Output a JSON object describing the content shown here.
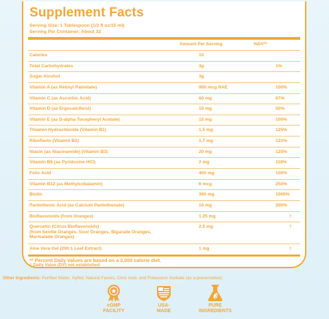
{
  "panel": {
    "title": "Supplement Facts",
    "serving_size": "Serving Size: 1 Tablespoon (1/2 fl oz/15 ml)",
    "servings_per_container": "Serving Per Container: About 32",
    "header_amount": "Amount Per Serving",
    "header_dv": "%DV**"
  },
  "rows": [
    {
      "name": "Calories",
      "amount": "10",
      "dv": ""
    },
    {
      "name": "Total Carbohydrates",
      "amount": "3g",
      "dv": "1%"
    },
    {
      "name": "Sugar Alcohol",
      "amount": "3g",
      "dv": ""
    },
    {
      "name": "Vitamin A (as Retinyl Palmitate)",
      "amount": "900 mcg RAE",
      "dv": "100%"
    },
    {
      "name": "Vitamin C (as Ascorbic Acid)",
      "amount": "60 mg",
      "dv": "67%"
    },
    {
      "name": "Vitamin D (as Ergocalciferol)",
      "amount": "10 mg",
      "dv": "50%"
    },
    {
      "name": "Vitamin E (as D-alpha Tocopheryl Acetate)",
      "amount": "15 mg",
      "dv": "100%"
    },
    {
      "name": "Thiamin Hydrochloride (Vitamin B1)",
      "amount": "1.5 mg",
      "dv": "125%"
    },
    {
      "name": "Riboflavin (Vitamin B2)",
      "amount": "1.7 mg",
      "dv": "131%"
    },
    {
      "name": "Niacin (as Niacinamide) (Vitamin B3)",
      "amount": "20 mg",
      "dv": "125%"
    },
    {
      "name": "Vitamin B6 (as Pyridoxine HCl)",
      "amount": "2 mg",
      "dv": "118%"
    },
    {
      "name": "Folic Acid",
      "amount": "400 mg",
      "dv": "100%"
    },
    {
      "name": "Vitamin B12 (as Methylcobalamin)",
      "amount": "6 mcg",
      "dv": "250%"
    },
    {
      "name": "Biotin",
      "amount": "300 mg",
      "dv": "1000%"
    },
    {
      "name": "Pantothenic Acid (as Calcium Pantothenate)",
      "amount": "10 mg",
      "dv": "200%"
    },
    {
      "name": "Bioflavonoids (from Oranges)",
      "amount": "1.25 mg",
      "dv": "†"
    },
    {
      "name": "Quercetin (Citrus Bioflavonoids)",
      "subname": "(from Seville Oranges, Sour Oranges, Bigarade Oranges, Marmalade Oranges)",
      "amount": "2.5 mg",
      "dv": "†"
    },
    {
      "name": "Aloe Vera Gel (200:1 Leaf Extract)",
      "amount": "1 mg",
      "dv": "†"
    }
  ],
  "footnotes": {
    "percent_dv": "** Percent Daily Values are based on a 2,000 calorie diet.",
    "not_established": "† Daily Value (DV) not established"
  },
  "other_ingredients": {
    "label": "Other Ingredients:",
    "text": "Purified Water, Xylitol, Natural Favors, Citric Acid, and Potassium Sorbate (as a preservative)."
  },
  "badges": [
    {
      "icon": "medal-icon",
      "line1": "cGMP",
      "line2": "FACILITY"
    },
    {
      "icon": "usa-flag-icon",
      "line1": "USA-",
      "line2": "MADE"
    },
    {
      "icon": "flask-leaf-icon",
      "line1": "PURE",
      "line2": "INGREDIENTS"
    }
  ],
  "colors": {
    "accent": "#f2a73a",
    "background": "#e3f2f9"
  }
}
